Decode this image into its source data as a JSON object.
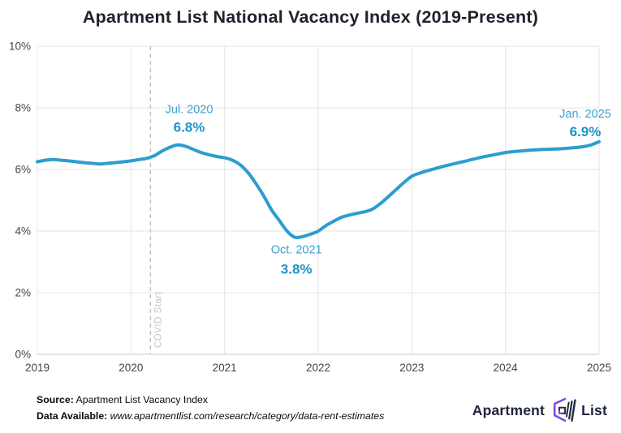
{
  "title": "Apartment List National Vacancy Index (2019-Present)",
  "colors": {
    "line": "#2D9DCE",
    "annotation_date": "#3BA1D2",
    "annotation_value": "#1E93C7",
    "grid": "#e5e5e5",
    "axis": "#c9c9c9",
    "covid_line": "#bfbfbf",
    "covid_text": "#c6c6c6",
    "tick_text": "#454545",
    "logo_purple": "#7A4BF0",
    "logo_dark": "#262B47"
  },
  "axes": {
    "y_ticks": [
      {
        "value": 10,
        "label": "10%"
      },
      {
        "value": 8,
        "label": "8%"
      },
      {
        "value": 6,
        "label": "6%"
      },
      {
        "value": 4,
        "label": "4%"
      },
      {
        "value": 2,
        "label": "2%"
      },
      {
        "value": 0,
        "label": "0%"
      }
    ],
    "x_ticks": [
      {
        "month": 0,
        "label": "2019"
      },
      {
        "month": 12,
        "label": "2020"
      },
      {
        "month": 24,
        "label": "2021"
      },
      {
        "month": 36,
        "label": "2022"
      },
      {
        "month": 48,
        "label": "2023"
      },
      {
        "month": 60,
        "label": "2024"
      },
      {
        "month": 72,
        "label": "2025"
      }
    ]
  },
  "covid_marker": {
    "label": "COVID Start",
    "month": 14.5
  },
  "annotations": [
    {
      "date_label": "Jul. 2020",
      "value_label": "6.8%",
      "month": 18,
      "value": 6.8,
      "placement": "above"
    },
    {
      "date_label": "Oct. 2021",
      "value_label": "3.8%",
      "month": 33,
      "value": 3.8,
      "placement": "below"
    },
    {
      "date_label": "Jan. 2025",
      "value_label": "6.9%",
      "month": 72,
      "value": 6.9,
      "placement": "above-left"
    }
  ],
  "chart_data": {
    "type": "line",
    "title": "Apartment List National Vacancy Index (2019-Present)",
    "xlabel": "",
    "ylabel": "",
    "ylim": [
      0,
      10
    ],
    "x_range": [
      "2019-01",
      "2025-01"
    ],
    "frequency": "monthly",
    "grid": true,
    "legend": "none",
    "series": [
      {
        "name": "National Vacancy Index",
        "start": "2019-01",
        "values": [
          6.25,
          6.3,
          6.32,
          6.3,
          6.28,
          6.25,
          6.22,
          6.2,
          6.18,
          6.2,
          6.22,
          6.25,
          6.28,
          6.32,
          6.36,
          6.45,
          6.6,
          6.72,
          6.8,
          6.75,
          6.65,
          6.55,
          6.48,
          6.42,
          6.38,
          6.3,
          6.15,
          5.9,
          5.55,
          5.15,
          4.7,
          4.35,
          4.0,
          3.8,
          3.82,
          3.9,
          4.0,
          4.18,
          4.32,
          4.45,
          4.52,
          4.58,
          4.63,
          4.72,
          4.9,
          5.12,
          5.35,
          5.58,
          5.78,
          5.88,
          5.96,
          6.03,
          6.1,
          6.16,
          6.22,
          6.28,
          6.34,
          6.4,
          6.45,
          6.5,
          6.55,
          6.58,
          6.6,
          6.62,
          6.64,
          6.65,
          6.66,
          6.67,
          6.69,
          6.71,
          6.74,
          6.8,
          6.9
        ]
      }
    ],
    "key_points": [
      {
        "label": "Jul. 2020",
        "value": 6.8
      },
      {
        "label": "Oct. 2021",
        "value": 3.8
      },
      {
        "label": "Jan. 2025",
        "value": 6.9
      }
    ]
  },
  "footer": {
    "source_label": "Source:",
    "source_value": "Apartment List Vacancy Index",
    "data_available_label": "Data Available:",
    "data_available_value": "www.apartmentlist.com/research/category/data-rent-estimates"
  },
  "logo": {
    "word1": "Apartment",
    "word2": "List"
  }
}
